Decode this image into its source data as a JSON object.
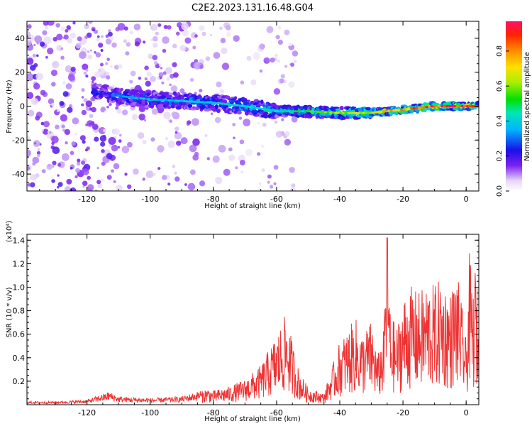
{
  "title": "C2E2.2023.131.16.48.G04",
  "colors": {
    "snr_line": "#ee3333",
    "axis": "#000000",
    "background": "#ffffff"
  },
  "colorbar_label": "Normalized spectral amplitude",
  "colorbar_ticks": [
    "0.0",
    "0.2",
    "0.4",
    "0.6",
    "0.8"
  ],
  "chart_data": [
    {
      "type": "heatmap",
      "title": "C2E2.2023.131.16.48.G04",
      "xlabel": "Height of straight line (km)",
      "ylabel": "Frequency (Hz)",
      "xlim": [
        -139,
        4
      ],
      "ylim": [
        -50,
        50
      ],
      "x_ticks": [
        "-120",
        "-100",
        "-80",
        "-60",
        "-40",
        "-20",
        "0"
      ],
      "x_tick_values": [
        -120,
        -100,
        -80,
        -60,
        -40,
        -20,
        0
      ],
      "y_ticks": [
        "40",
        "20",
        "0",
        "-20",
        "-40"
      ],
      "y_tick_values": [
        40,
        20,
        0,
        -20,
        -40
      ],
      "colorscale": {
        "min": 0.0,
        "max": 0.97,
        "label": "Normalized spectral amplitude"
      },
      "ridge": {
        "x": [
          -115,
          -110,
          -100,
          -90,
          -80,
          -70,
          -60,
          -50,
          -40,
          -30,
          -20,
          -10,
          0,
          4
        ],
        "y": [
          8,
          6,
          4,
          3,
          2,
          0,
          -3,
          -3,
          -4,
          -4,
          -2,
          0,
          0,
          0
        ],
        "amplitude": [
          0.3,
          0.35,
          0.38,
          0.4,
          0.42,
          0.45,
          0.45,
          0.55,
          0.65,
          0.7,
          0.8,
          0.9,
          0.92,
          0.9
        ]
      }
    },
    {
      "type": "line",
      "xlabel": "Height of straight line (km)",
      "ylabel": "SNR (10 * v/v)",
      "y_multiplier": "(x10⁴)",
      "xlim": [
        -139,
        4
      ],
      "ylim": [
        0,
        1.45
      ],
      "x_ticks": [
        "-120",
        "-100",
        "-80",
        "-60",
        "-40",
        "-20",
        "0"
      ],
      "x_tick_values": [
        -120,
        -100,
        -80,
        -60,
        -40,
        -20,
        0
      ],
      "y_ticks": [
        "0.2",
        "0.4",
        "0.6",
        "0.8",
        "1.0",
        "1.2",
        "1.4"
      ],
      "y_tick_values": [
        0.2,
        0.4,
        0.6,
        0.8,
        1.0,
        1.2,
        1.4
      ],
      "series": [
        {
          "x": [
            -139,
            -130,
            -120,
            -113,
            -110,
            -100,
            -90,
            -85,
            -82,
            -80,
            -75,
            -70,
            -65,
            -60,
            -57,
            -55,
            -53,
            -50,
            -45,
            -42,
            -40,
            -37,
            -35,
            -33,
            -30,
            -28,
            -26,
            -25,
            -24,
            -22,
            -20,
            -18,
            -15,
            -12,
            -10,
            -8,
            -5,
            -3,
            -2,
            0,
            1,
            2,
            3,
            4
          ],
          "y": [
            0.02,
            0.02,
            0.03,
            0.08,
            0.05,
            0.04,
            0.05,
            0.08,
            0.12,
            0.1,
            0.13,
            0.18,
            0.28,
            0.5,
            0.65,
            0.45,
            0.25,
            0.12,
            0.08,
            0.3,
            0.45,
            0.55,
            0.62,
            0.5,
            0.6,
            0.35,
            0.55,
            1.42,
            0.65,
            0.55,
            0.75,
            0.85,
            0.8,
            0.88,
            0.85,
            0.9,
            0.8,
            0.95,
            0.82,
            0.45,
            1.1,
            0.78,
            1.02,
            0.62
          ]
        }
      ]
    }
  ]
}
